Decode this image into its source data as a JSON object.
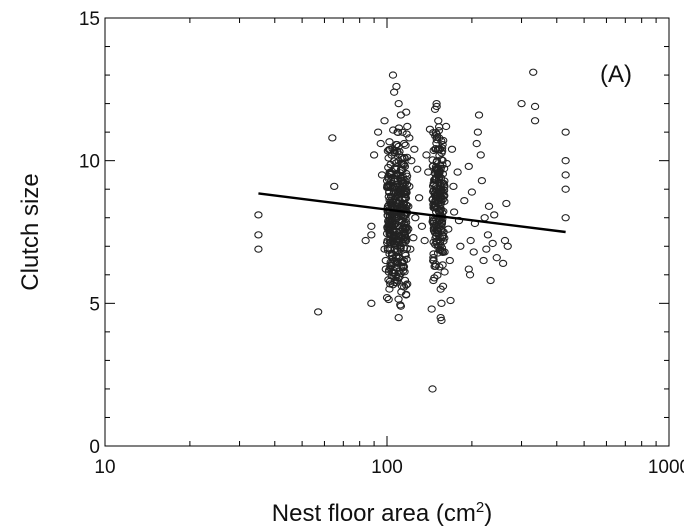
{
  "chart_data": {
    "type": "scatter",
    "title": "",
    "panel_label": "(A)",
    "xlabel_base": "Nest floor area (cm",
    "xlabel_sup": "2",
    "xlabel_tail": ")",
    "ylabel": "Clutch size",
    "x_scale": "log",
    "xlim": [
      10,
      1000
    ],
    "ylim": [
      0,
      15
    ],
    "x_ticks": [
      10,
      100,
      1000
    ],
    "x_tick_labels": [
      "10",
      "100",
      "1000"
    ],
    "y_ticks": [
      0,
      5,
      10,
      15
    ],
    "y_tick_labels": [
      "0",
      "5",
      "10",
      "15"
    ],
    "grid": false,
    "legend": "none",
    "colors": {
      "points": "#222222",
      "line": "#000000",
      "axes": "#000000"
    },
    "regression_line": {
      "x": [
        35,
        430
      ],
      "y": [
        8.85,
        7.5
      ]
    },
    "series": [
      {
        "values": [
          [
            35,
            8.1
          ],
          [
            35,
            7.4
          ],
          [
            35,
            6.9
          ],
          [
            57,
            4.7
          ],
          [
            64,
            10.8
          ],
          [
            65,
            9.1
          ],
          [
            84,
            7.2
          ],
          [
            88,
            7.7
          ],
          [
            88,
            7.4
          ],
          [
            88,
            5.0
          ],
          [
            90,
            10.2
          ],
          [
            93,
            11.0
          ],
          [
            95,
            10.6
          ],
          [
            96,
            9.5
          ],
          [
            98,
            11.4
          ],
          [
            98,
            6.9
          ],
          [
            99,
            6.5
          ],
          [
            99,
            6.2
          ],
          [
            100,
            5.2
          ],
          [
            105,
            13.0
          ],
          [
            106,
            12.4
          ],
          [
            108,
            12.6
          ],
          [
            110,
            12.0
          ],
          [
            112,
            11.6
          ],
          [
            109,
            11.0
          ],
          [
            110,
            10.5
          ],
          [
            112,
            4.9
          ],
          [
            110,
            4.5
          ],
          [
            113,
            5.6
          ],
          [
            114,
            6.3
          ],
          [
            115,
            10.6
          ],
          [
            117,
            11.7
          ],
          [
            118,
            11.2
          ],
          [
            120,
            10.8
          ],
          [
            122,
            10.0
          ],
          [
            120,
            9.1
          ],
          [
            119,
            8.4
          ],
          [
            119,
            7.6
          ],
          [
            121,
            6.9
          ],
          [
            124,
            7.3
          ],
          [
            125,
            10.4
          ],
          [
            126,
            8.0
          ],
          [
            128,
            9.7
          ],
          [
            130,
            8.7
          ],
          [
            133,
            7.7
          ],
          [
            136,
            7.2
          ],
          [
            138,
            10.2
          ],
          [
            140,
            9.6
          ],
          [
            142,
            11.1
          ],
          [
            144,
            4.8
          ],
          [
            145,
            2.0
          ],
          [
            146,
            5.8
          ],
          [
            146,
            6.6
          ],
          [
            148,
            11.8
          ],
          [
            150,
            11.9
          ],
          [
            152,
            11.4
          ],
          [
            153,
            10.8
          ],
          [
            154,
            10.4
          ],
          [
            155,
            4.5
          ],
          [
            156,
            4.4
          ],
          [
            156,
            5.0
          ],
          [
            158,
            5.6
          ],
          [
            160,
            6.1
          ],
          [
            160,
            6.8
          ],
          [
            162,
            11.2
          ],
          [
            163,
            9.9
          ],
          [
            165,
            7.6
          ],
          [
            167,
            6.5
          ],
          [
            168,
            5.1
          ],
          [
            170,
            10.4
          ],
          [
            172,
            9.1
          ],
          [
            173,
            8.2
          ],
          [
            178,
            9.6
          ],
          [
            180,
            7.9
          ],
          [
            182,
            7.0
          ],
          [
            188,
            8.6
          ],
          [
            195,
            9.8
          ],
          [
            195,
            6.2
          ],
          [
            197,
            6.0
          ],
          [
            198,
            7.2
          ],
          [
            200,
            8.9
          ],
          [
            203,
            6.8
          ],
          [
            205,
            7.8
          ],
          [
            208,
            10.6
          ],
          [
            210,
            11.0
          ],
          [
            212,
            11.6
          ],
          [
            215,
            10.2
          ],
          [
            217,
            9.3
          ],
          [
            220,
            6.5
          ],
          [
            222,
            8.0
          ],
          [
            225,
            6.9
          ],
          [
            228,
            7.4
          ],
          [
            230,
            8.4
          ],
          [
            233,
            5.8
          ],
          [
            237,
            7.1
          ],
          [
            240,
            8.1
          ],
          [
            245,
            6.6
          ],
          [
            258,
            6.4
          ],
          [
            262,
            7.2
          ],
          [
            265,
            8.5
          ],
          [
            268,
            7.0
          ],
          [
            300,
            12.0
          ],
          [
            330,
            13.1
          ],
          [
            335,
            11.9
          ],
          [
            335,
            11.4
          ],
          [
            430,
            11.0
          ],
          [
            430,
            10.0
          ],
          [
            430,
            9.5
          ],
          [
            430,
            9.0
          ],
          [
            430,
            8.0
          ]
        ]
      }
    ],
    "dense_columns": [
      {
        "x_min": 100,
        "x_max": 118,
        "y_min": 4.5,
        "y_max": 12.6,
        "count": 360,
        "mean": 8.3,
        "spread": 1.3
      },
      {
        "x_min": 145,
        "x_max": 160,
        "y_min": 4.4,
        "y_max": 12.0,
        "count": 200,
        "mean": 8.5,
        "spread": 1.2
      }
    ]
  }
}
